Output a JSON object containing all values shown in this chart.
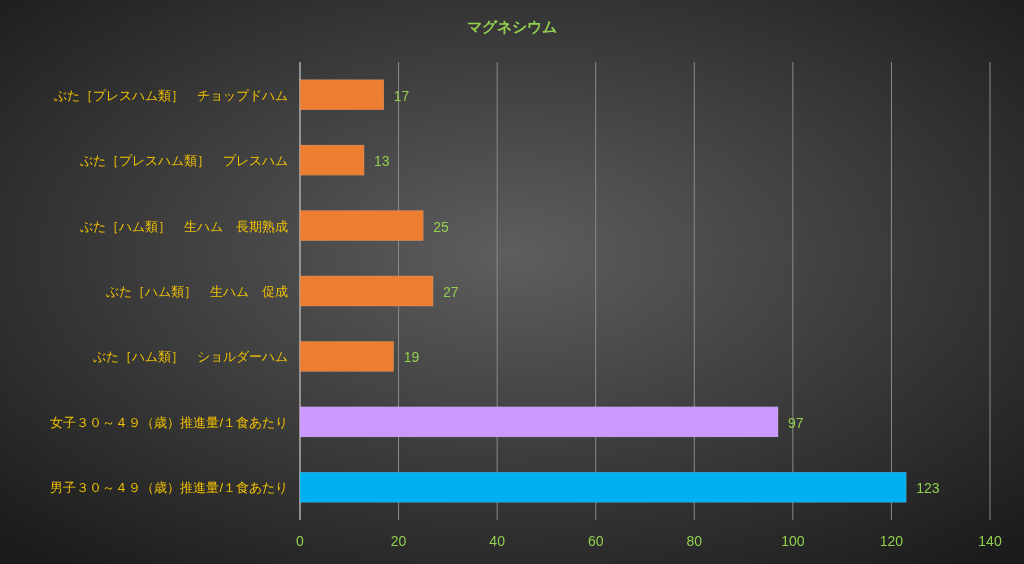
{
  "chart_data": {
    "type": "bar",
    "orientation": "horizontal",
    "title": "マグネシウム",
    "categories": [
      "ぶた［プレスハム類］　チョップドハム",
      "ぶた［プレスハム類］　プレスハム",
      "ぶた［ハム類］　生ハム　長期熟成",
      "ぶた［ハム類］　生ハム　促成",
      "ぶた［ハム類］　ショルダーハム",
      "女子３０～４９（歳）推進量/１食あたり",
      "男子３０～４９（歳）推進量/１食あたり"
    ],
    "values": [
      17,
      13,
      25,
      27,
      19,
      97,
      123
    ],
    "colors": [
      "#ed7d31",
      "#ed7d31",
      "#ed7d31",
      "#ed7d31",
      "#ed7d31",
      "#cc99ff",
      "#00b0f0"
    ],
    "xlim": [
      0,
      140
    ],
    "xticks": [
      0,
      20,
      40,
      60,
      80,
      100,
      120,
      140
    ],
    "grid": "x",
    "data_labels": true
  }
}
